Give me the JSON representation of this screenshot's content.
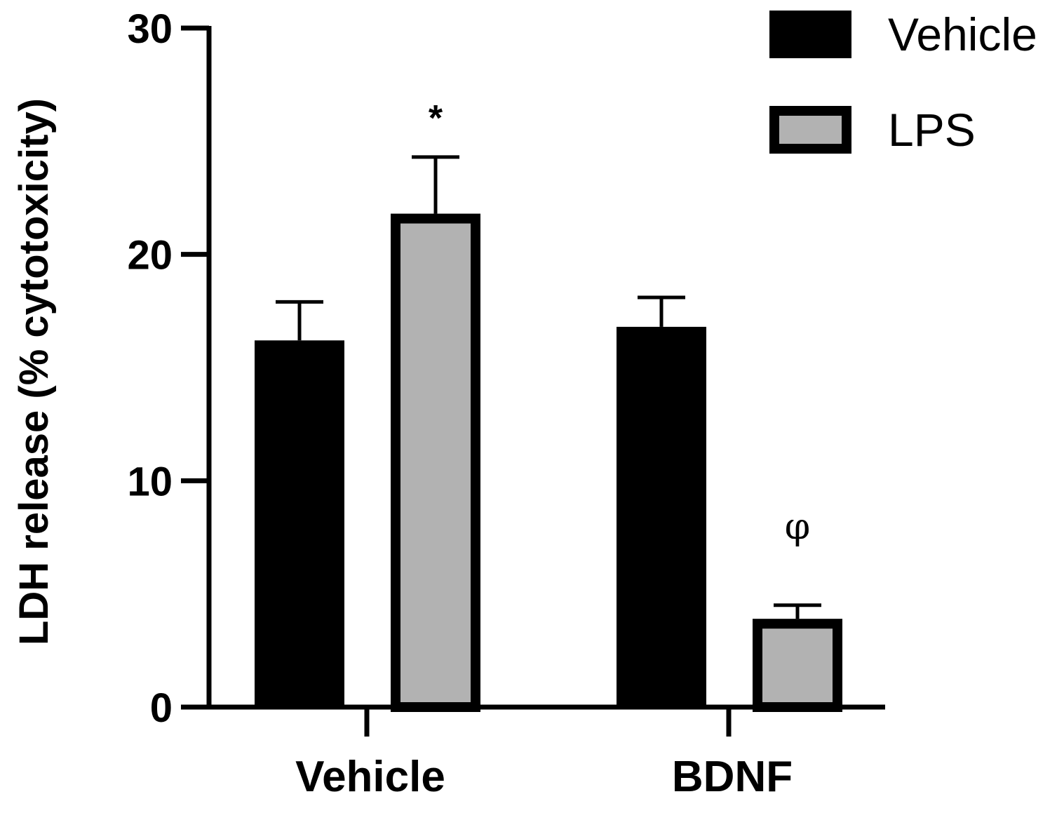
{
  "chart_data": {
    "type": "bar",
    "categories": [
      "Vehicle",
      "BDNF"
    ],
    "ylabel": "LDH release (% cytotoxicity)",
    "xlabel": "",
    "ylim": [
      0,
      30
    ],
    "yticks": [
      "0",
      "10",
      "20",
      "30"
    ],
    "series": [
      {
        "name": "Vehicle",
        "color": "#000000",
        "values": [
          16.2,
          16.8
        ],
        "errors": [
          1.7,
          1.3
        ]
      },
      {
        "name": "LPS",
        "color": "#b2b2b2",
        "values": [
          21.8,
          3.9
        ],
        "errors": [
          2.5,
          0.6
        ]
      }
    ],
    "annotations": [
      {
        "text": "*",
        "series": 1,
        "category": 0
      },
      {
        "text": "φ",
        "series": 1,
        "category": 1
      }
    ],
    "legend_position": "top-right",
    "grid": false
  }
}
